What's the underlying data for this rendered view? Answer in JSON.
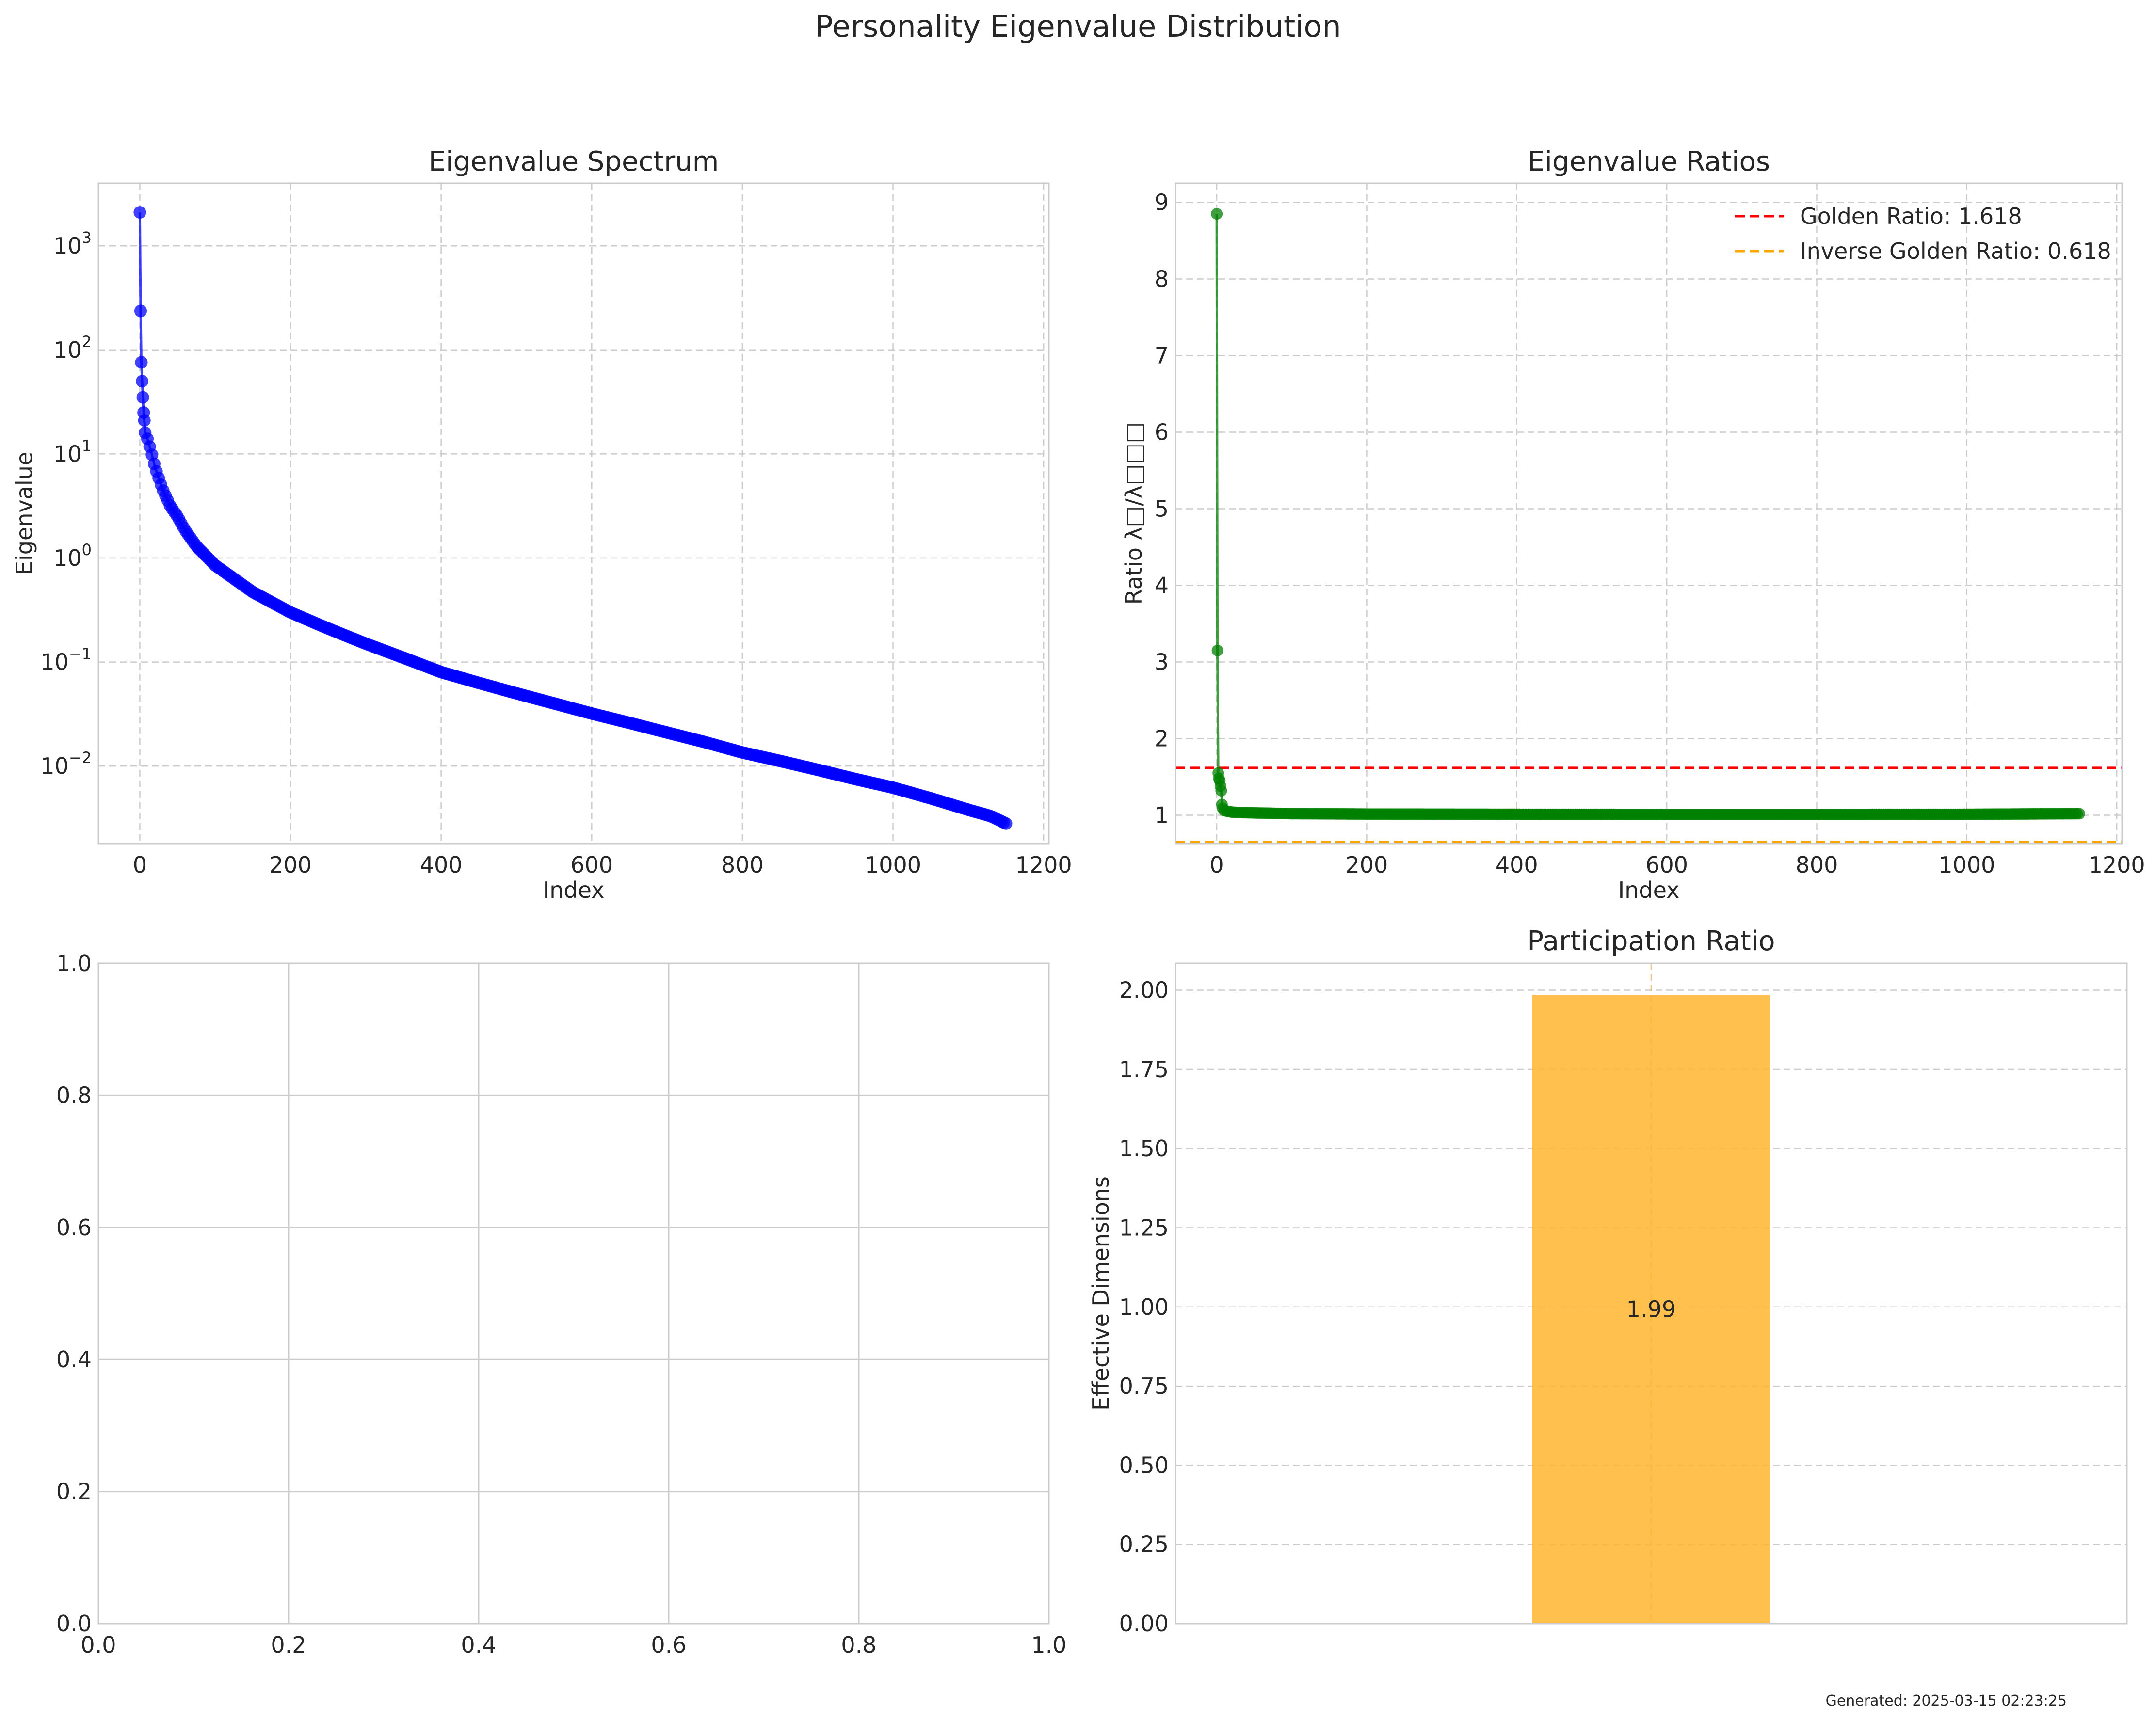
{
  "figure": {
    "title": "Personality Eigenvalue Distribution",
    "footer": "Generated: 2025-03-15 02:23:25"
  },
  "chart_data": [
    {
      "type": "scatter",
      "title": "Eigenvalue Spectrum",
      "xlabel": "Index",
      "ylabel": "Eigenvalue",
      "yscale": "log",
      "xlim": [
        -55,
        1207
      ],
      "ylim": [
        0.0018,
        4000
      ],
      "x_ticks": [
        0,
        200,
        400,
        600,
        800,
        1000,
        1200
      ],
      "y_ticks": [
        {
          "value": 0.01,
          "base": "10",
          "exp": "−2"
        },
        {
          "value": 0.1,
          "base": "10",
          "exp": "−1"
        },
        {
          "value": 1,
          "base": "10",
          "exp": "0"
        },
        {
          "value": 10,
          "base": "10",
          "exp": "1"
        },
        {
          "value": 100,
          "base": "10",
          "exp": "2"
        },
        {
          "value": 1000,
          "base": "10",
          "exp": "3"
        }
      ],
      "color": "#0000ff",
      "grid": true,
      "series": [
        {
          "marker": "circle",
          "line": true,
          "points": [
            [
              0,
              2100
            ],
            [
              1,
              237
            ],
            [
              2,
              76
            ],
            [
              3,
              50
            ],
            [
              4,
              35
            ],
            [
              5,
              25
            ],
            [
              6,
              21
            ],
            [
              7,
              16
            ],
            [
              8,
              15.5
            ],
            [
              9,
              14.8
            ],
            [
              10,
              14
            ],
            [
              15,
              10.5
            ],
            [
              20,
              7.5
            ],
            [
              30,
              4.6
            ],
            [
              40,
              3.2
            ],
            [
              50,
              2.5
            ],
            [
              60,
              1.85
            ],
            [
              75,
              1.3
            ],
            [
              100,
              0.85
            ],
            [
              150,
              0.47
            ],
            [
              200,
              0.3
            ],
            [
              250,
              0.21
            ],
            [
              300,
              0.15
            ],
            [
              350,
              0.11
            ],
            [
              400,
              0.08
            ],
            [
              450,
              0.063
            ],
            [
              500,
              0.05
            ],
            [
              550,
              0.04
            ],
            [
              600,
              0.032
            ],
            [
              650,
              0.026
            ],
            [
              700,
              0.021
            ],
            [
              750,
              0.017
            ],
            [
              800,
              0.0135
            ],
            [
              850,
              0.0112
            ],
            [
              900,
              0.0092
            ],
            [
              950,
              0.0075
            ],
            [
              1000,
              0.0062
            ],
            [
              1050,
              0.0049
            ],
            [
              1100,
              0.0038
            ],
            [
              1130,
              0.0033
            ],
            [
              1150,
              0.0028
            ]
          ]
        }
      ]
    },
    {
      "type": "line",
      "title": "Eigenvalue Ratios",
      "xlabel": "Index",
      "ylabel": "Ratio λ□/λ□□□",
      "xlim": [
        -55,
        1207
      ],
      "ylim": [
        0.63,
        9.25
      ],
      "x_ticks": [
        0,
        200,
        400,
        600,
        800,
        1000,
        1200
      ],
      "y_ticks": [
        1,
        2,
        3,
        4,
        5,
        6,
        7,
        8,
        9
      ],
      "color": "#008000",
      "grid": true,
      "legend_position": "top-right",
      "series": [
        {
          "marker": "circle",
          "line": true,
          "points": [
            [
              0,
              8.85
            ],
            [
              1,
              3.15
            ],
            [
              2,
              1.55
            ],
            [
              3,
              1.48
            ],
            [
              4,
              1.45
            ],
            [
              5,
              1.38
            ],
            [
              6,
              1.32
            ],
            [
              7,
              1.14
            ],
            [
              8,
              1.09
            ],
            [
              10,
              1.06
            ],
            [
              15,
              1.05
            ],
            [
              20,
              1.04
            ],
            [
              30,
              1.035
            ],
            [
              50,
              1.03
            ],
            [
              100,
              1.02
            ],
            [
              200,
              1.015
            ],
            [
              400,
              1.012
            ],
            [
              600,
              1.01
            ],
            [
              800,
              1.01
            ],
            [
              1000,
              1.012
            ],
            [
              1150,
              1.02
            ]
          ]
        }
      ],
      "reference_lines": [
        {
          "name": "Golden Ratio: 1.618",
          "value": 1.618,
          "color": "#ff0000",
          "style": "dashed"
        },
        {
          "name": "Inverse Golden Ratio: 0.618",
          "value": 0.618,
          "color": "#ffa500",
          "style": "dashed"
        }
      ]
    },
    {
      "type": "empty",
      "title": "",
      "xlim": [
        0,
        1
      ],
      "ylim": [
        0,
        1
      ],
      "x_ticks": [
        "0.0",
        "0.2",
        "0.4",
        "0.6",
        "0.8",
        "1.0"
      ],
      "y_ticks": [
        "0.0",
        "0.2",
        "0.4",
        "0.6",
        "0.8",
        "1.0"
      ],
      "grid": true
    },
    {
      "type": "bar",
      "title": "Participation Ratio",
      "xlabel": "",
      "ylabel": "Effective Dimensions",
      "ylim": [
        0,
        2.085
      ],
      "y_ticks": [
        "0.00",
        "0.25",
        "0.50",
        "0.75",
        "1.00",
        "1.25",
        "1.50",
        "1.75",
        "2.00"
      ],
      "categories": [
        ""
      ],
      "values": [
        1.985
      ],
      "data_labels": [
        "1.99"
      ],
      "color": "#ffb52e",
      "grid": true
    }
  ]
}
